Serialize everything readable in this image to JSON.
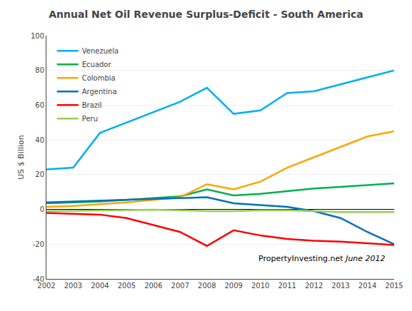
{
  "chart_data": {
    "type": "line",
    "title": "Annual Net Oil Revenue Surplus-Deficit - South America",
    "ylabel": "US $ Billion",
    "x": [
      2002,
      2003,
      2004,
      2005,
      2006,
      2007,
      2008,
      2009,
      2010,
      2011,
      2012,
      2013,
      2014,
      2015
    ],
    "series": [
      {
        "name": "Venezuela",
        "color": "#00B0F0",
        "values": [
          23,
          24,
          44,
          50,
          56,
          62,
          70,
          55,
          57,
          67,
          68,
          72,
          76,
          80
        ]
      },
      {
        "name": "Ecuador",
        "color": "#00B050",
        "values": [
          3.5,
          4.0,
          4.5,
          5.5,
          6.5,
          7.5,
          11.5,
          8.0,
          9.0,
          10.5,
          12.0,
          13.0,
          14.0,
          15.0
        ]
      },
      {
        "name": "Colombia",
        "color": "#FFA500",
        "values": [
          1.5,
          2.0,
          3.0,
          4.0,
          5.5,
          7.0,
          14.5,
          11.5,
          16.0,
          24.0,
          30.0,
          36.0,
          42.0,
          45.0
        ]
      },
      {
        "name": "Argentina",
        "color": "#0070C0",
        "values": [
          4.0,
          4.5,
          5.0,
          5.5,
          6.0,
          6.5,
          7.0,
          3.5,
          2.5,
          1.5,
          -1.0,
          -5.0,
          -13.0,
          -20.0
        ]
      },
      {
        "name": "Brazil",
        "color": "#FF0000",
        "values": [
          -2.0,
          -2.5,
          -3.0,
          -5.0,
          -9.0,
          -13.0,
          -21.0,
          -12.0,
          -15.0,
          -17.0,
          -18.0,
          -18.5,
          -19.5,
          -20.5
        ]
      },
      {
        "name": "Peru",
        "color": "#92D050",
        "values": [
          -1.0,
          -0.8,
          -0.5,
          -0.3,
          -0.2,
          -0.5,
          -1.0,
          -1.0,
          -0.5,
          -0.5,
          -1.0,
          -1.5,
          -1.5,
          -1.5
        ]
      }
    ],
    "xlim": [
      2002,
      2015
    ],
    "xticks": [
      2002,
      2003,
      2004,
      2005,
      2006,
      2007,
      2008,
      2009,
      2010,
      2011,
      2012,
      2013,
      2014,
      2015
    ],
    "ylim": [
      -40,
      100
    ],
    "yticks": [
      -40,
      -20,
      0,
      20,
      40,
      60,
      80,
      100
    ],
    "grid": true,
    "legend": "upper left",
    "annotations": [
      "PropertyInvesting.net",
      "June 2012"
    ]
  }
}
